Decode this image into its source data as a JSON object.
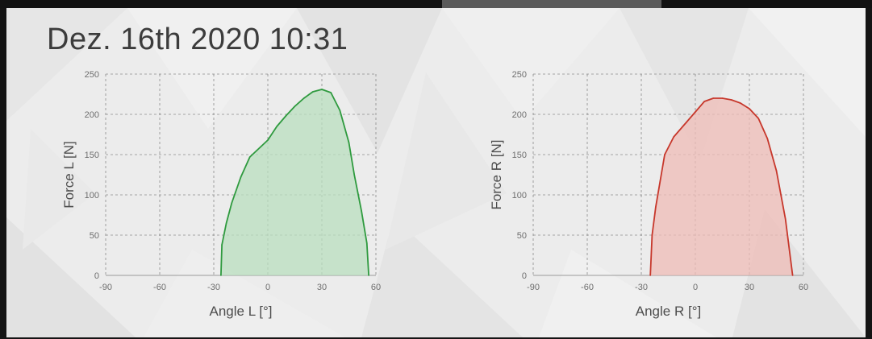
{
  "title": "Dez. 16th 2020 10:31",
  "chart_data": [
    {
      "type": "area",
      "xlabel": "Angle L [°]",
      "ylabel": "Force L [N]",
      "xlim": [
        -90,
        60
      ],
      "ylim": [
        0,
        250
      ],
      "xticks": [
        -90,
        -60,
        -30,
        0,
        30,
        60
      ],
      "yticks": [
        0,
        50,
        100,
        150,
        200,
        250
      ],
      "grid": true,
      "color": "#2e9a3e",
      "fill": "#b9dfbf",
      "x": [
        -26,
        -25.5,
        -23,
        -20,
        -15,
        -10,
        0,
        5,
        10,
        15,
        20,
        25,
        30,
        35,
        40,
        45,
        48,
        52,
        55,
        56
      ],
      "y": [
        0,
        38,
        65,
        90,
        122,
        147,
        168,
        185,
        198,
        210,
        220,
        228,
        231,
        227,
        205,
        165,
        125,
        80,
        40,
        0
      ]
    },
    {
      "type": "area",
      "xlabel": "Angle R [°]",
      "ylabel": "Force R [N]",
      "xlim": [
        -90,
        60
      ],
      "ylim": [
        0,
        250
      ],
      "xticks": [
        -90,
        -60,
        -30,
        0,
        30,
        60
      ],
      "yticks": [
        0,
        50,
        100,
        150,
        200,
        250
      ],
      "grid": true,
      "color": "#c7372b",
      "fill": "#efbcb7",
      "x": [
        -25,
        -24,
        -22,
        -17,
        -12,
        -5,
        0,
        5,
        10,
        15,
        20,
        25,
        30,
        35,
        40,
        45,
        50,
        54
      ],
      "y": [
        0,
        50,
        85,
        150,
        172,
        190,
        203,
        216,
        220,
        220,
        218,
        214,
        207,
        195,
        170,
        130,
        70,
        0
      ]
    }
  ]
}
